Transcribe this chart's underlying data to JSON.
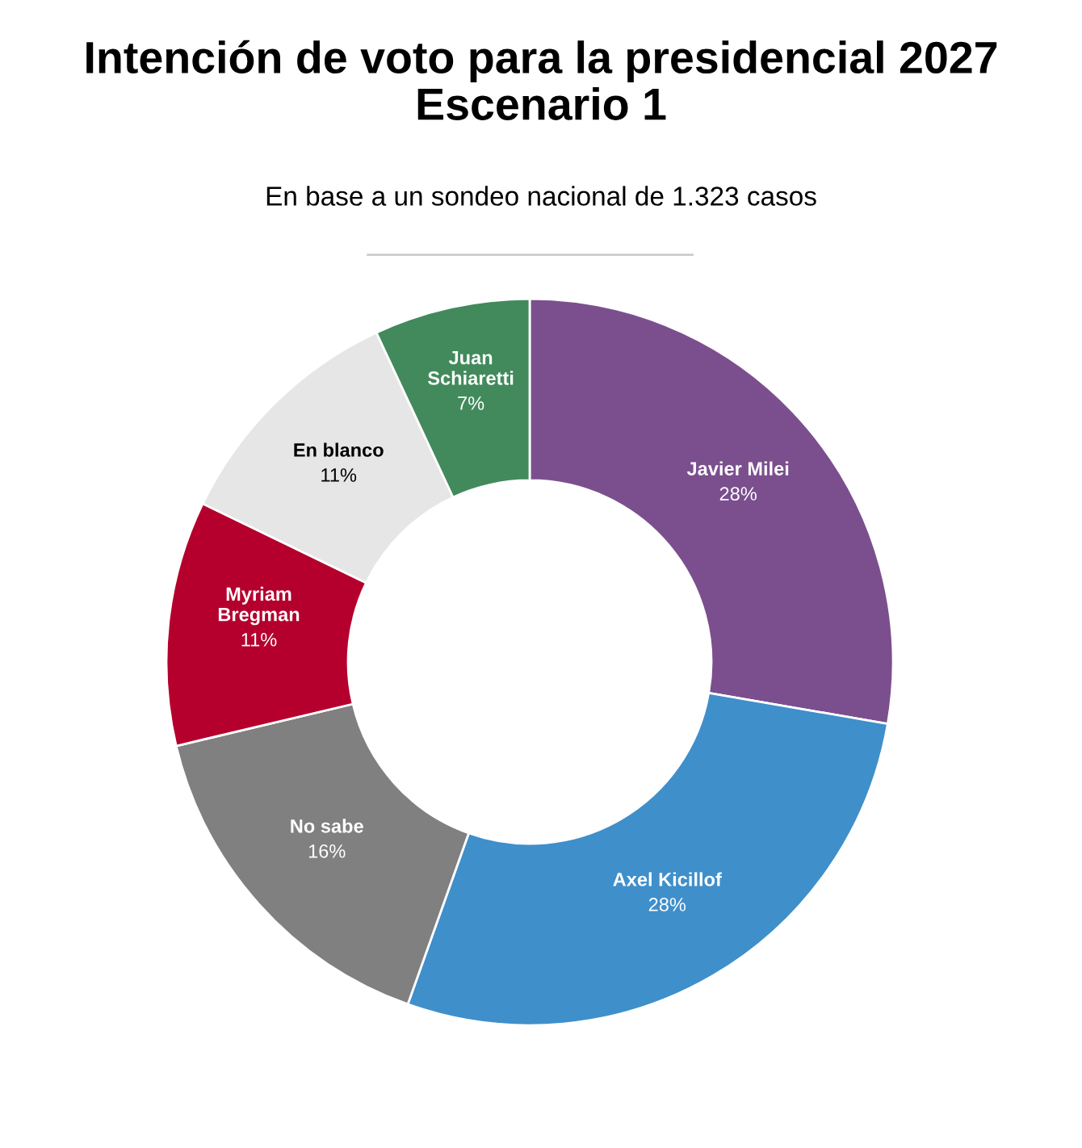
{
  "chart_data": {
    "type": "donut",
    "title": "Intención de voto para la presidencial 2027\nEscenario 1",
    "subtitle": "En base a un sondeo nacional de 1.323 casos",
    "categories": [
      "Javier Milei",
      "Axel Kicillof",
      "No sabe",
      "Myriam\nBregman",
      "En blanco",
      "Juan\nSchiaretti"
    ],
    "values": [
      28,
      28,
      16,
      11,
      11,
      7
    ],
    "value_labels": [
      "28%",
      "28%",
      "16%",
      "11%",
      "11%",
      "7%"
    ],
    "colors": [
      "#7b4f8e",
      "#3f8fcb",
      "#808080",
      "#b5002e",
      "#e6e6e6",
      "#428a5c"
    ],
    "legend": false
  }
}
